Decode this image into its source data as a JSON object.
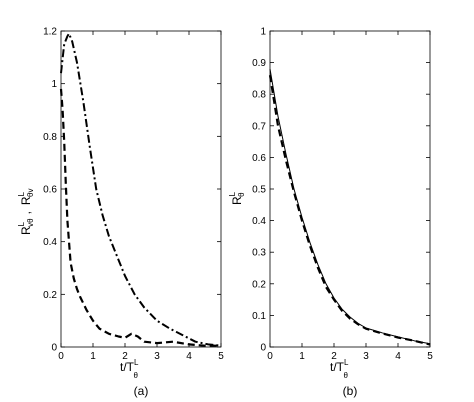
{
  "chart_data": [
    {
      "type": "line",
      "panel_label": "(a)",
      "xlabel": "t/T",
      "xlabel_sup": "L",
      "xlabel_sub": "θ",
      "ylabel_parts": [
        "R",
        "L",
        "vθ",
        ",",
        "R",
        "L",
        "θv"
      ],
      "xlim": [
        0,
        5
      ],
      "ylim": [
        0,
        1.2
      ],
      "xticks": [
        "0",
        "1",
        "2",
        "3",
        "4",
        "5"
      ],
      "yticks": [
        "0",
        "0.2",
        "0.4",
        "0.6",
        "0.8",
        "1",
        "1.2"
      ],
      "xtick_values": [
        0,
        1,
        2,
        3,
        4,
        5
      ],
      "ytick_values": [
        0,
        0.2,
        0.4,
        0.6,
        0.8,
        1.0,
        1.2
      ],
      "series": [
        {
          "style": "dashed",
          "x": [
            0,
            0.05,
            0.1,
            0.15,
            0.2,
            0.3,
            0.4,
            0.5,
            0.6,
            0.8,
            1.0,
            1.2,
            1.5,
            1.8,
            2.0,
            2.2,
            2.4,
            2.6,
            3.0,
            3.5,
            4.0,
            4.5,
            5.0
          ],
          "y": [
            0.98,
            0.9,
            0.78,
            0.62,
            0.48,
            0.32,
            0.26,
            0.22,
            0.19,
            0.14,
            0.1,
            0.07,
            0.05,
            0.04,
            0.035,
            0.05,
            0.04,
            0.02,
            0.015,
            0.02,
            0.01,
            0.005,
            0.005
          ]
        },
        {
          "style": "dashdot",
          "x": [
            0,
            0.1,
            0.2,
            0.25,
            0.35,
            0.5,
            0.7,
            0.9,
            1.1,
            1.3,
            1.5,
            1.8,
            2.0,
            2.3,
            2.6,
            3.0,
            3.4,
            3.8,
            4.2,
            4.6,
            5.0
          ],
          "y": [
            1.04,
            1.15,
            1.18,
            1.19,
            1.16,
            1.08,
            0.93,
            0.76,
            0.6,
            0.5,
            0.42,
            0.33,
            0.27,
            0.2,
            0.15,
            0.1,
            0.07,
            0.045,
            0.02,
            0.01,
            0.005
          ]
        }
      ]
    },
    {
      "type": "line",
      "panel_label": "(b)",
      "xlabel": "t/T",
      "xlabel_sup": "L",
      "xlabel_sub": "θ",
      "ylabel_parts": [
        "R",
        "L",
        "θ"
      ],
      "xlim": [
        0,
        5
      ],
      "ylim": [
        0,
        1
      ],
      "xticks": [
        "0",
        "1",
        "2",
        "3",
        "4",
        "5"
      ],
      "yticks": [
        "0",
        "0.1",
        "0.2",
        "0.3",
        "0.4",
        "0.5",
        "0.6",
        "0.7",
        "0.8",
        "0.9",
        "1"
      ],
      "xtick_values": [
        0,
        1,
        2,
        3,
        4,
        5
      ],
      "ytick_values": [
        0,
        0.1,
        0.2,
        0.3,
        0.4,
        0.5,
        0.6,
        0.7,
        0.8,
        0.9,
        1.0
      ],
      "series": [
        {
          "style": "solid",
          "x": [
            0,
            0.25,
            0.5,
            0.75,
            1.0,
            1.25,
            1.5,
            1.75,
            2.0,
            2.25,
            2.5,
            2.75,
            3.0,
            3.5,
            4.0,
            4.5,
            5.0
          ],
          "y": [
            0.88,
            0.73,
            0.61,
            0.5,
            0.41,
            0.33,
            0.26,
            0.2,
            0.155,
            0.12,
            0.095,
            0.075,
            0.06,
            0.045,
            0.032,
            0.02,
            0.01
          ]
        },
        {
          "style": "dashed",
          "x": [
            0,
            0.25,
            0.5,
            0.75,
            1.0,
            1.25,
            1.5,
            1.75,
            2.0,
            2.25,
            2.5,
            2.75,
            3.0,
            3.5,
            4.0,
            4.5,
            5.0
          ],
          "y": [
            0.86,
            0.7,
            0.59,
            0.49,
            0.4,
            0.32,
            0.25,
            0.19,
            0.15,
            0.115,
            0.09,
            0.072,
            0.058,
            0.043,
            0.03,
            0.02,
            0.008
          ]
        }
      ]
    }
  ]
}
